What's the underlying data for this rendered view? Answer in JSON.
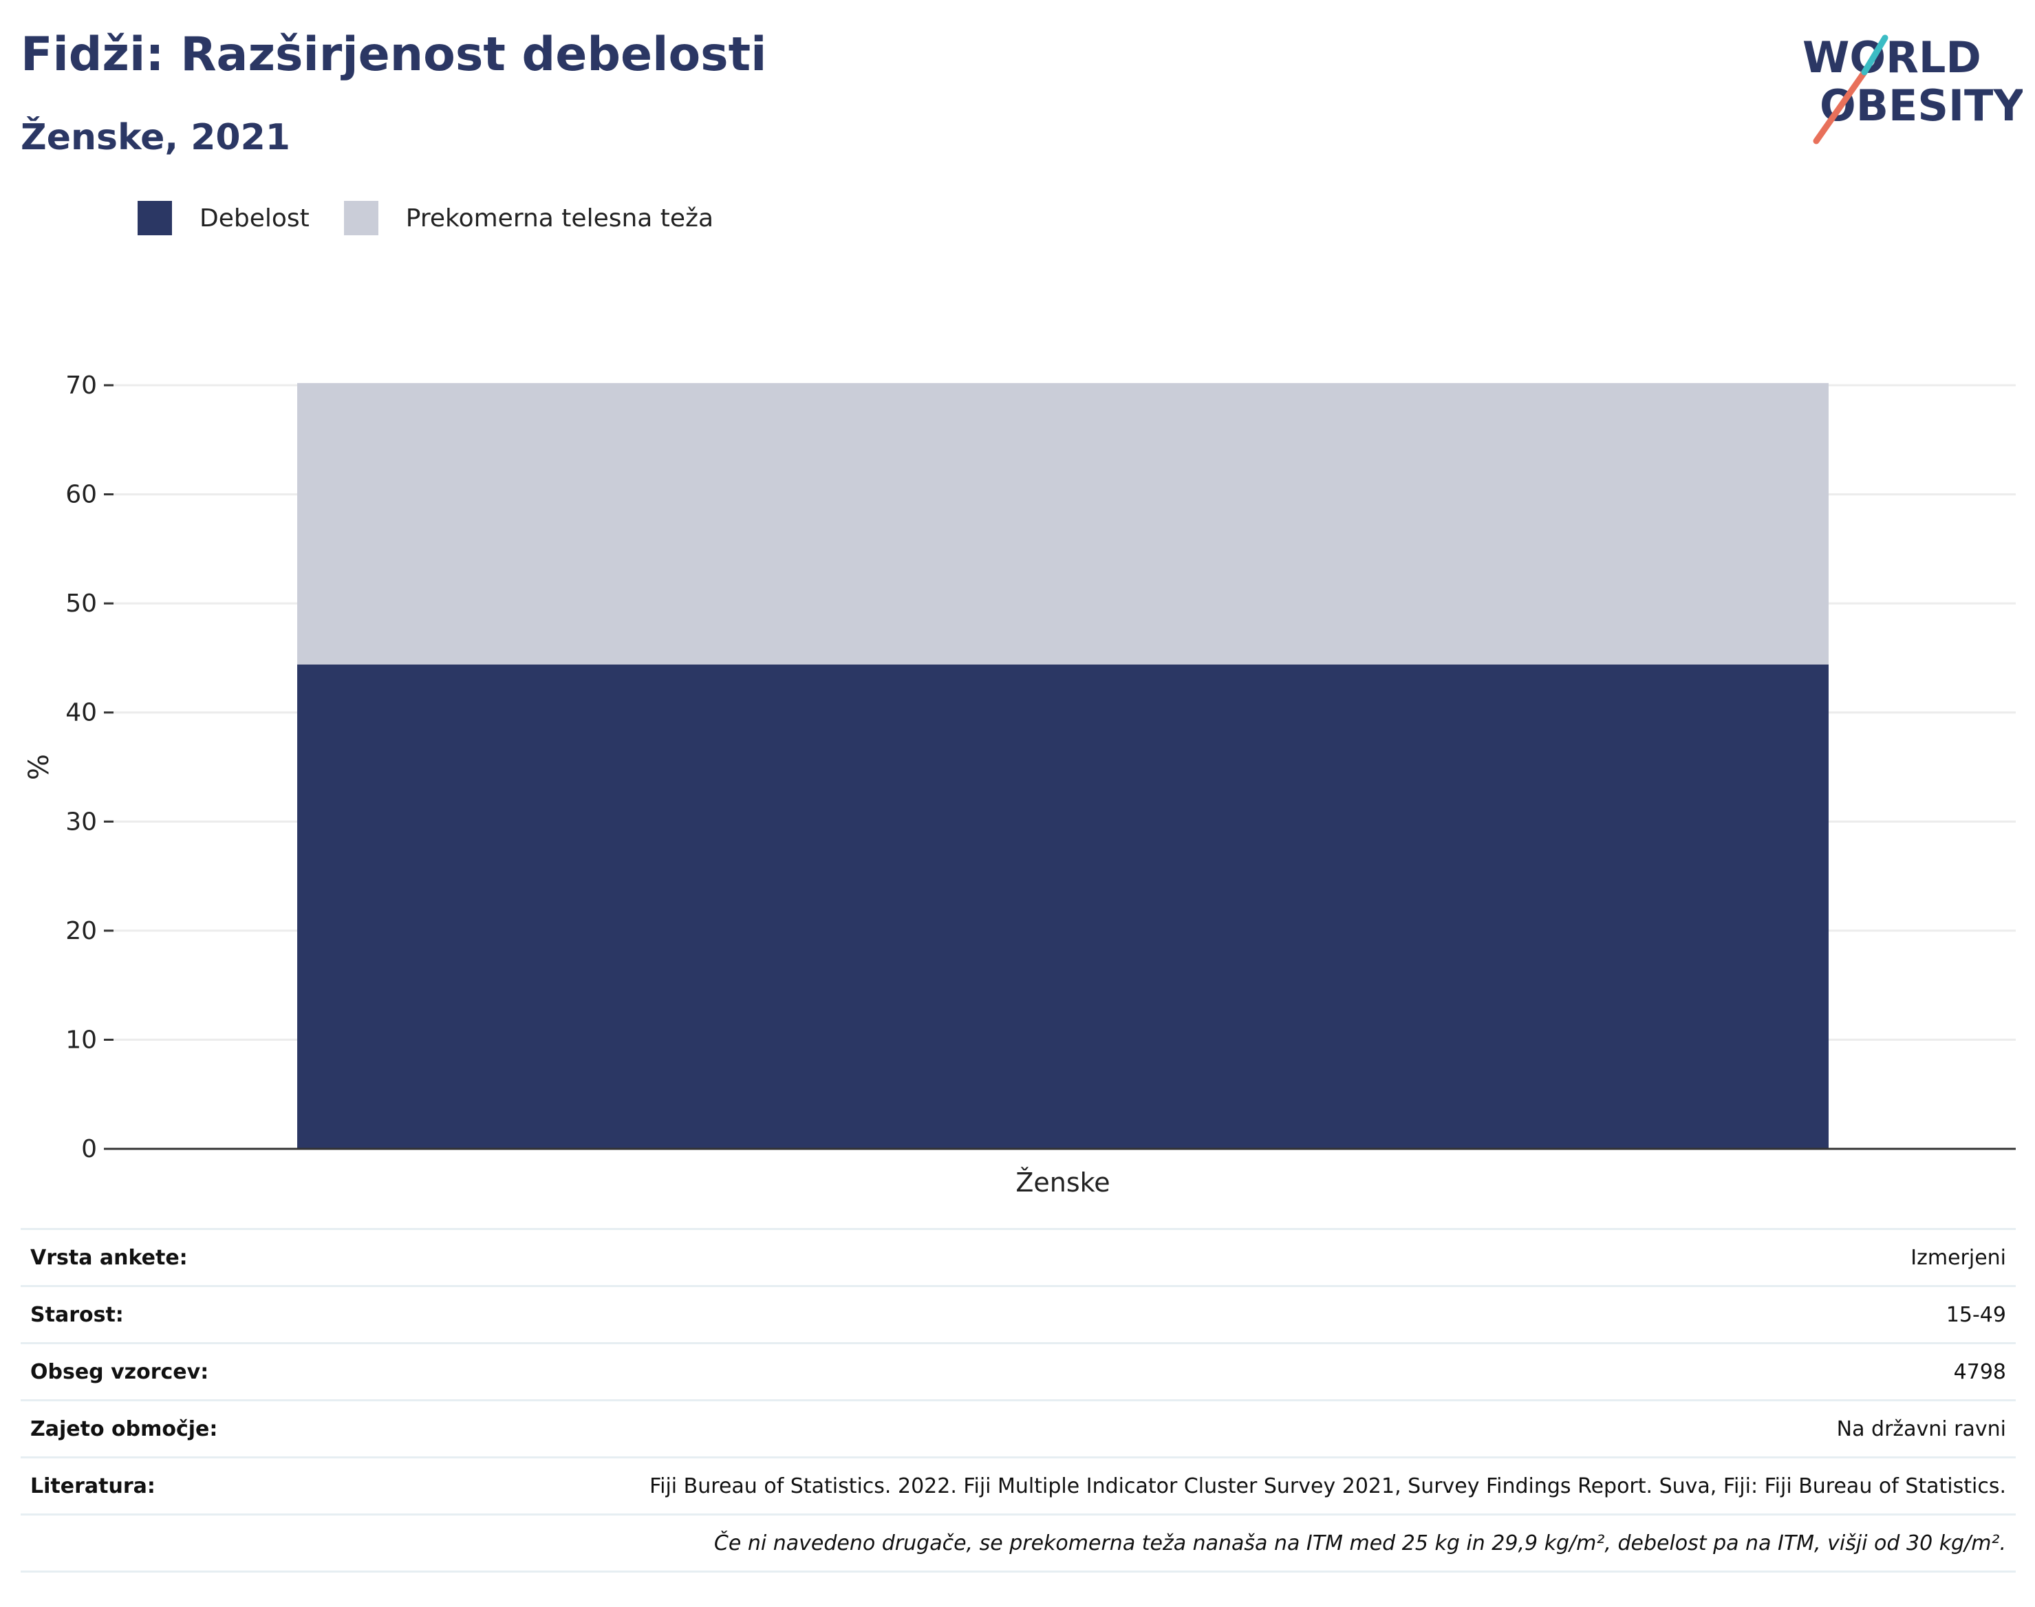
{
  "header": {
    "title": "Fidži: Razširjenost debelosti",
    "subtitle": "Ženske, 2021"
  },
  "logo": {
    "line1": "WORLD",
    "line2": "OBESITY",
    "colors": {
      "text": "#2b3764",
      "slash_teal": "#3bbcc4",
      "slash_coral": "#e8705a"
    }
  },
  "legend": [
    {
      "label": "Debelost",
      "color": "#2b3764"
    },
    {
      "label": "Prekomerna telesna teža",
      "color": "#cacdd8"
    }
  ],
  "chart_data": {
    "type": "bar",
    "stacked": true,
    "categories": [
      "Ženske"
    ],
    "series": [
      {
        "name": "Debelost",
        "values": [
          44.4
        ],
        "color": "#2b3764"
      },
      {
        "name": "Prekomerna telesna teža",
        "values": [
          25.8
        ],
        "color": "#cacdd8"
      }
    ],
    "ylabel": "%",
    "ylim": [
      0,
      70
    ],
    "yticks": [
      0,
      10,
      20,
      30,
      40,
      50,
      60,
      70
    ],
    "grid": true,
    "legend_position": "top-left"
  },
  "info": {
    "rows": [
      {
        "label": "Vrsta ankete:",
        "value": "Izmerjeni"
      },
      {
        "label": "Starost:",
        "value": "15-49"
      },
      {
        "label": "Obseg vzorcev:",
        "value": "4798"
      },
      {
        "label": "Zajeto območje:",
        "value": "Na državni ravni"
      },
      {
        "label": "Literatura:",
        "value": "Fiji Bureau of Statistics. 2022. Fiji Multiple Indicator Cluster Survey 2021, Survey Findings Report. Suva, Fiji: Fiji Bureau of Statistics."
      }
    ],
    "note": "Če ni navedeno drugače, se prekomerna teža nanaša na ITM med 25 kg in 29,9 kg/m², debelost pa na ITM, višji od 30 kg/m²."
  }
}
